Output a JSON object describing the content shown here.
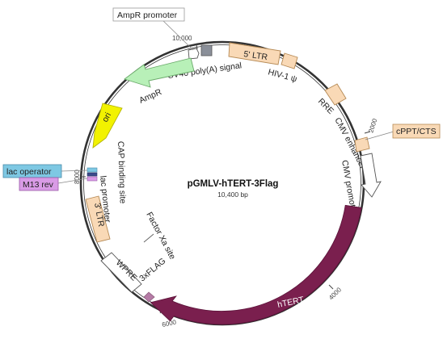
{
  "plasmid": {
    "name": "pGMLV-hTERT-3Flag",
    "size": "10,400 bp"
  },
  "ticks": [
    "10,000",
    "2000",
    "4000",
    "6000",
    "8000"
  ],
  "features": {
    "ampr_promoter": "AmpR promoter",
    "sv40_polya": "SV40 poly(A) signal",
    "ltr5": "5' LTR",
    "hiv_psi": "HIV-1 ψ",
    "rre": "RRE",
    "cppt": "cPPT/CTS",
    "cmv_enhancer": "CMV enhancer",
    "cmv_promoter": "CMV promoter",
    "htert": "hTERT",
    "flag": "3xFLAG",
    "wpre": "WPRE",
    "factor_xa": "Factor Xa site",
    "ltr3": "3' LTR",
    "lac_promoter": "lac promoter",
    "cap_site": "CAP binding site",
    "lac_operator": "lac operator",
    "m13rev": "M13 rev",
    "ori": "ori",
    "ampr": "AmpR"
  },
  "colors": {
    "backbone": "#333333",
    "htert": "#7a1f4e",
    "ltr": "#f9d9b6",
    "ampr": "#b8f0b8",
    "ori": "#f2f200",
    "lac_operator": "#7ec8e3",
    "m13rev": "#d99be6",
    "flag": "#b57ba6",
    "sv40": "#8a8f99"
  }
}
